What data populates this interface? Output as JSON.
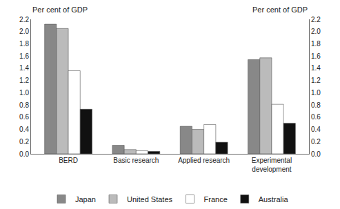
{
  "chart_data": {
    "type": "bar",
    "categories": [
      "BERD",
      "Basic research",
      "Applied research",
      "Experimental\ndevelopment"
    ],
    "series": [
      {
        "name": "Japan",
        "color": "#888888",
        "values": [
          2.12,
          0.14,
          0.45,
          1.54
        ]
      },
      {
        "name": "United States",
        "color": "#bbbbbb",
        "values": [
          2.05,
          0.07,
          0.4,
          1.57
        ]
      },
      {
        "name": "France",
        "color": "#ffffff",
        "values": [
          1.36,
          0.05,
          0.48,
          0.81
        ]
      },
      {
        "name": "Australia",
        "color": "#111111",
        "values": [
          0.73,
          0.04,
          0.19,
          0.5
        ]
      }
    ],
    "ylabel": "Per cent of GDP",
    "y2label": "Per cent of GDP",
    "ylim": [
      0,
      2.2
    ],
    "yticks": [
      {
        "value": 0.0,
        "label": "0.0"
      },
      0.2,
      0.4,
      0.6,
      0.8,
      {
        "value": 1.0,
        "label": "1.0"
      },
      1.2,
      1.4,
      1.6,
      1.8,
      {
        "value": 2.0,
        "label": "2.0"
      },
      2.2
    ],
    "y2lim": [
      0,
      2.2
    ],
    "y2ticks": [
      {
        "value": 0.0,
        "label": "0.0"
      },
      0.2,
      0.4,
      0.6,
      0.8,
      {
        "value": 1.0,
        "label": "1.0"
      },
      1.2,
      1.4,
      1.6,
      1.8,
      {
        "value": 2.0,
        "label": "2.0"
      },
      2.2
    ],
    "grid": false,
    "legend": "bottom"
  }
}
